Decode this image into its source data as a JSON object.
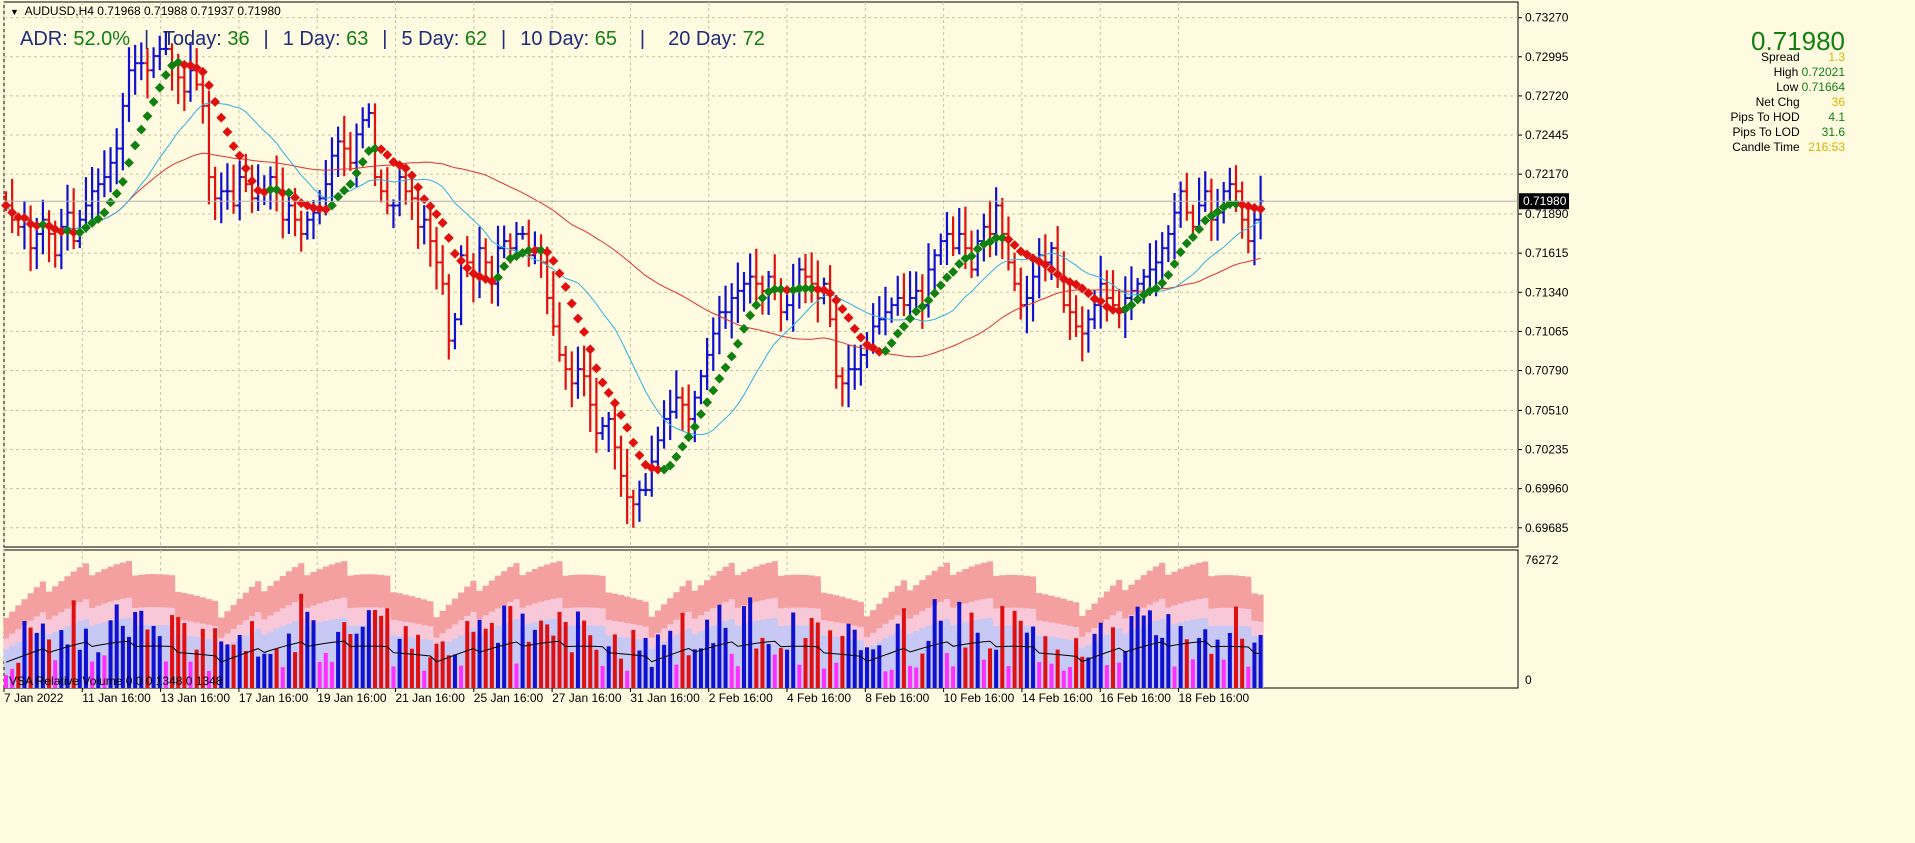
{
  "symbol_line": {
    "symbol": "AUDUSD,H4",
    "ohlc": "0.71968 0.71988 0.71937 0.71980"
  },
  "adr_line": {
    "adr_label": "ADR:",
    "adr_value": "52.0%",
    "today_label": "Today:",
    "today_value": "36",
    "d1_label": "1 Day:",
    "d1_value": "63",
    "d5_label": "5 Day:",
    "d5_value": "62",
    "d10_label": "10 Day:",
    "d10_value": "65",
    "d20_label": "20 Day:",
    "d20_value": "72",
    "separator": "|"
  },
  "info_panel": {
    "price": "0.71980",
    "rows": [
      {
        "label": "Spread",
        "value": "1.3",
        "color": "#d9b400"
      },
      {
        "label": "High",
        "value": "0.72021",
        "color": "#118011"
      },
      {
        "label": "Low",
        "value": "0.71664",
        "color": "#118011"
      },
      {
        "label": "Net Chg",
        "value": "36",
        "color": "#d9b400"
      },
      {
        "label": "Pips To HOD",
        "value": "4.1",
        "color": "#118011"
      },
      {
        "label": "Pips To LOD",
        "value": "31.6",
        "color": "#118011"
      },
      {
        "label": "Candle Time",
        "value": "216:53",
        "color": "#d9b400"
      }
    ]
  },
  "vsa_panel": {
    "title": "VSA Relative Volume 0 0 0 1348 0 1348",
    "scale_top": "76272",
    "scale_bottom": "0"
  },
  "colors": {
    "background": "#fffbe0",
    "grid": "#c8c4a0",
    "bull": "#1010d0",
    "bear": "#e01010",
    "ma_slow": "#e03030",
    "ma_fast": "#30b0e0",
    "trend_up": "#108010",
    "trend_down": "#e01010",
    "vol_band_outer": "#f4a0a0",
    "vol_band_mid": "#f8c8d8",
    "vol_band_inner": "#c8c8f4",
    "vol_climax": "#e01010",
    "vol_high": "#1010d0",
    "vol_low": "#ff30ff",
    "current_price_box": "#000000"
  },
  "chart_data": {
    "type": "ohlc",
    "symbol": "AUDUSD",
    "timeframe": "H4",
    "y_ticks": [
      "0.73270",
      "0.72995",
      "0.72720",
      "0.72445",
      "0.72170",
      "0.71890",
      "0.71615",
      "0.71340",
      "0.71065",
      "0.70790",
      "0.70510",
      "0.70235",
      "0.69960",
      "0.69685"
    ],
    "ylim": [
      0.6955,
      0.7338
    ],
    "current_price": 0.7198,
    "current_price_label": "0.71980",
    "x_ticks": [
      "7 Jan 2022",
      "11 Jan 16:00",
      "13 Jan 16:00",
      "17 Jan 16:00",
      "19 Jan 16:00",
      "21 Jan 16:00",
      "25 Jan 16:00",
      "27 Jan 16:00",
      "31 Jan 16:00",
      "2 Feb 16:00",
      "4 Feb 16:00",
      "8 Feb 16:00",
      "10 Feb 16:00",
      "14 Feb 16:00",
      "16 Feb 16:00",
      "18 Feb 16:00"
    ],
    "closes": [
      0.7195,
      0.7185,
      0.718,
      0.7185,
      0.7165,
      0.7175,
      0.7185,
      0.7175,
      0.716,
      0.718,
      0.719,
      0.717,
      0.7185,
      0.7195,
      0.7205,
      0.721,
      0.7215,
      0.7225,
      0.7235,
      0.7265,
      0.729,
      0.7295,
      0.7295,
      0.729,
      0.73,
      0.7305,
      0.7305,
      0.7295,
      0.7285,
      0.7275,
      0.729,
      0.728,
      0.7265,
      0.7215,
      0.72,
      0.7205,
      0.7205,
      0.7195,
      0.7215,
      0.721,
      0.72,
      0.7205,
      0.7205,
      0.7215,
      0.7205,
      0.7185,
      0.7195,
      0.7185,
      0.7175,
      0.7185,
      0.719,
      0.72,
      0.721,
      0.723,
      0.724,
      0.7235,
      0.7225,
      0.7245,
      0.7255,
      0.726,
      0.7215,
      0.7205,
      0.7195,
      0.7195,
      0.7215,
      0.7205,
      0.72,
      0.718,
      0.7185,
      0.717,
      0.7155,
      0.714,
      0.71,
      0.7115,
      0.716,
      0.7155,
      0.7145,
      0.7165,
      0.7155,
      0.714,
      0.7165,
      0.717,
      0.7165,
      0.7175,
      0.7175,
      0.716,
      0.7165,
      0.7155,
      0.713,
      0.711,
      0.709,
      0.708,
      0.707,
      0.708,
      0.7075,
      0.7055,
      0.7035,
      0.704,
      0.7045,
      0.7025,
      0.7005,
      0.699,
      0.6985,
      0.6995,
      0.6995,
      0.7015,
      0.703,
      0.7045,
      0.705,
      0.706,
      0.7055,
      0.7045,
      0.706,
      0.7075,
      0.709,
      0.7105,
      0.712,
      0.712,
      0.713,
      0.7135,
      0.714,
      0.7145,
      0.714,
      0.7135,
      0.7145,
      0.7135,
      0.712,
      0.7125,
      0.7135,
      0.715,
      0.7145,
      0.714,
      0.713,
      0.714,
      0.7115,
      0.7075,
      0.707,
      0.708,
      0.708,
      0.709,
      0.7095,
      0.711,
      0.7115,
      0.712,
      0.7125,
      0.713,
      0.7125,
      0.713,
      0.7135,
      0.7125,
      0.715,
      0.716,
      0.717,
      0.7175,
      0.7165,
      0.7175,
      0.7165,
      0.715,
      0.717,
      0.718,
      0.7175,
      0.7195,
      0.7175,
      0.7155,
      0.714,
      0.7125,
      0.713,
      0.7145,
      0.716,
      0.7155,
      0.7165,
      0.7145,
      0.7125,
      0.712,
      0.711,
      0.7105,
      0.7115,
      0.7125,
      0.714,
      0.713,
      0.7125,
      0.712,
      0.713,
      0.7135,
      0.714,
      0.7145,
      0.715,
      0.7155,
      0.7165,
      0.7175,
      0.719,
      0.7205,
      0.719,
      0.718,
      0.7195,
      0.7205,
      0.7185,
      0.719,
      0.7205,
      0.721,
      0.7205,
      0.7185,
      0.717,
      0.7185,
      0.7198
    ],
    "series": [
      {
        "name": "MA fast"
      },
      {
        "name": "MA slow"
      },
      {
        "name": "Trend dots"
      }
    ],
    "volume": {
      "title": "VSA Relative Volume",
      "ylim": [
        0,
        76272
      ]
    }
  }
}
